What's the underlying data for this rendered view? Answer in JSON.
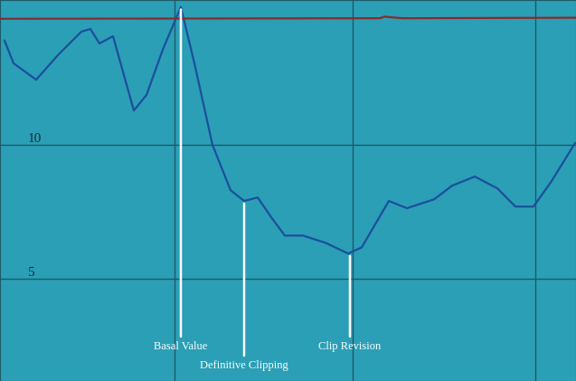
{
  "chart_data": {
    "type": "line",
    "series": [
      {
        "color": "#1c4f9c",
        "x": [
          5,
          15,
          40,
          65,
          90,
          100,
          110,
          125,
          148,
          162,
          180,
          200,
          215,
          235,
          255,
          270,
          285,
          300,
          315,
          335,
          360,
          385,
          400,
          430,
          450,
          480,
          500,
          525,
          550,
          570,
          590,
          610,
          636
        ],
        "values": [
          13.89,
          13.04,
          12.43,
          13.38,
          14.22,
          14.32,
          13.78,
          14.05,
          11.28,
          11.86,
          13.55,
          15.14,
          13.04,
          10.0,
          8.31,
          7.91,
          8.04,
          7.3,
          6.62,
          6.62,
          6.35,
          5.95,
          6.18,
          7.91,
          7.64,
          7.97,
          8.48,
          8.82,
          8.38,
          7.7,
          7.7,
          8.65,
          10.07
        ]
      },
      {
        "color": "#8b2a2a",
        "x": [
          0,
          420,
          425,
          445,
          637
        ],
        "values": [
          14.7,
          14.72,
          14.78,
          14.72,
          14.74
        ]
      }
    ],
    "xlim": [
      0,
      637
    ],
    "xticks": [
      193,
      390,
      592
    ],
    "ylim": [
      1.2,
      15.4
    ],
    "yticks": [
      5,
      10
    ],
    "grid": true,
    "tick_labels": "y",
    "annotations": [
      {
        "text": "Basal Value",
        "x": 200,
        "y": 15.14
      },
      {
        "text": "Definitive Clipping",
        "x": 270,
        "y": 7.91
      },
      {
        "text": "Clip Revision",
        "x": 387,
        "y": 5.95
      }
    ]
  }
}
